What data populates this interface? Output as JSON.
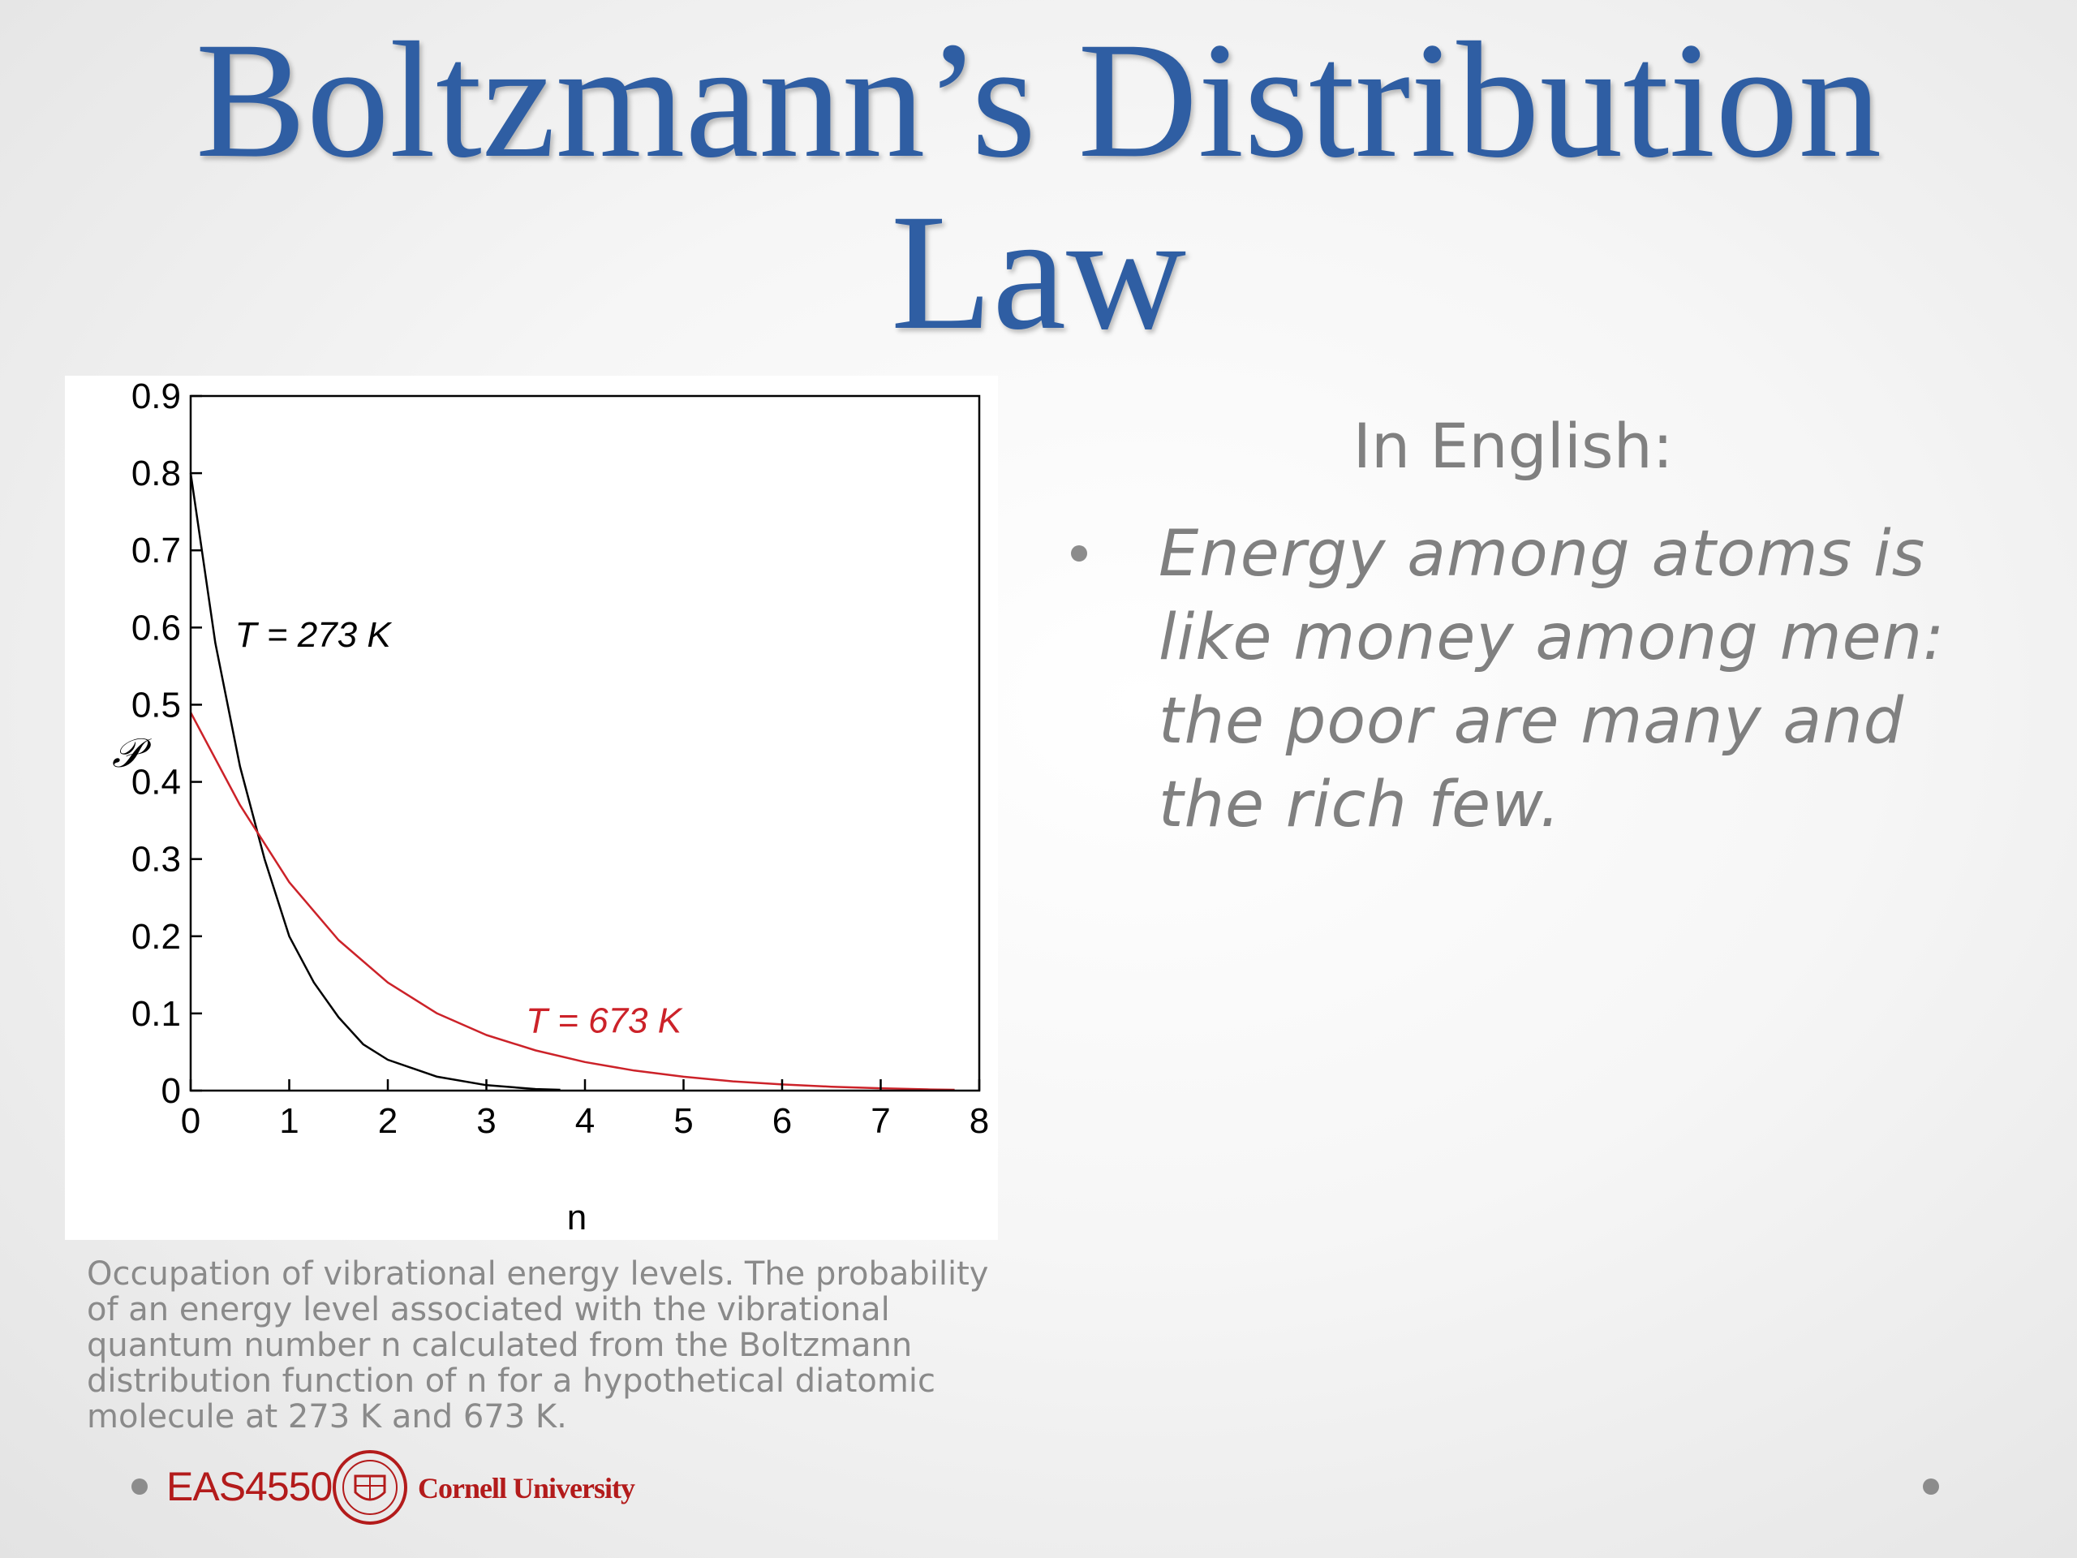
{
  "title": {
    "line1": "Boltzmann’s Distribution",
    "line2": "Law"
  },
  "chart_data": {
    "type": "line",
    "xlabel": "n",
    "ylabel": "𝒫",
    "xlim": [
      0,
      8
    ],
    "ylim": [
      0,
      0.9
    ],
    "x_ticks": [
      "0",
      "1",
      "2",
      "3",
      "4",
      "5",
      "6",
      "7",
      "8"
    ],
    "y_ticks": [
      "0",
      "0.1",
      "0.2",
      "0.3",
      "0.4",
      "0.5",
      "0.6",
      "0.7",
      "0.8",
      "0.9"
    ],
    "grid": false,
    "series": [
      {
        "name": "T = 273 K",
        "color": "#000000",
        "x": [
          0,
          0.25,
          0.5,
          0.75,
          1,
          1.25,
          1.5,
          1.75,
          2,
          2.5,
          3,
          3.5,
          3.75
        ],
        "values": [
          0.8,
          0.58,
          0.42,
          0.3,
          0.2,
          0.14,
          0.095,
          0.06,
          0.04,
          0.018,
          0.007,
          0.002,
          0.001
        ]
      },
      {
        "name": "T = 673 K",
        "color": "#cc2229",
        "x": [
          0,
          0.5,
          1,
          1.5,
          2,
          2.5,
          3,
          3.5,
          4,
          4.5,
          5,
          5.5,
          6,
          6.5,
          7,
          7.5,
          7.75
        ],
        "values": [
          0.49,
          0.37,
          0.27,
          0.195,
          0.14,
          0.1,
          0.072,
          0.052,
          0.037,
          0.026,
          0.018,
          0.012,
          0.008,
          0.005,
          0.003,
          0.0015,
          0.001
        ]
      }
    ]
  },
  "caption": "Occupation of vibrational energy levels. The probability of an energy level associated with the vibrational quantum number n calculated from the Boltzmann distribution function of n for a hypothetical diatomic molecule at 273 K and 673 K.",
  "explanation": {
    "heading": "In English:",
    "bullet": "Energy among atoms is like money among men: the poor are many and the rich few."
  },
  "footer": {
    "course": "EAS4550",
    "university": "Cornell University",
    "accent": "#b31b1b"
  }
}
